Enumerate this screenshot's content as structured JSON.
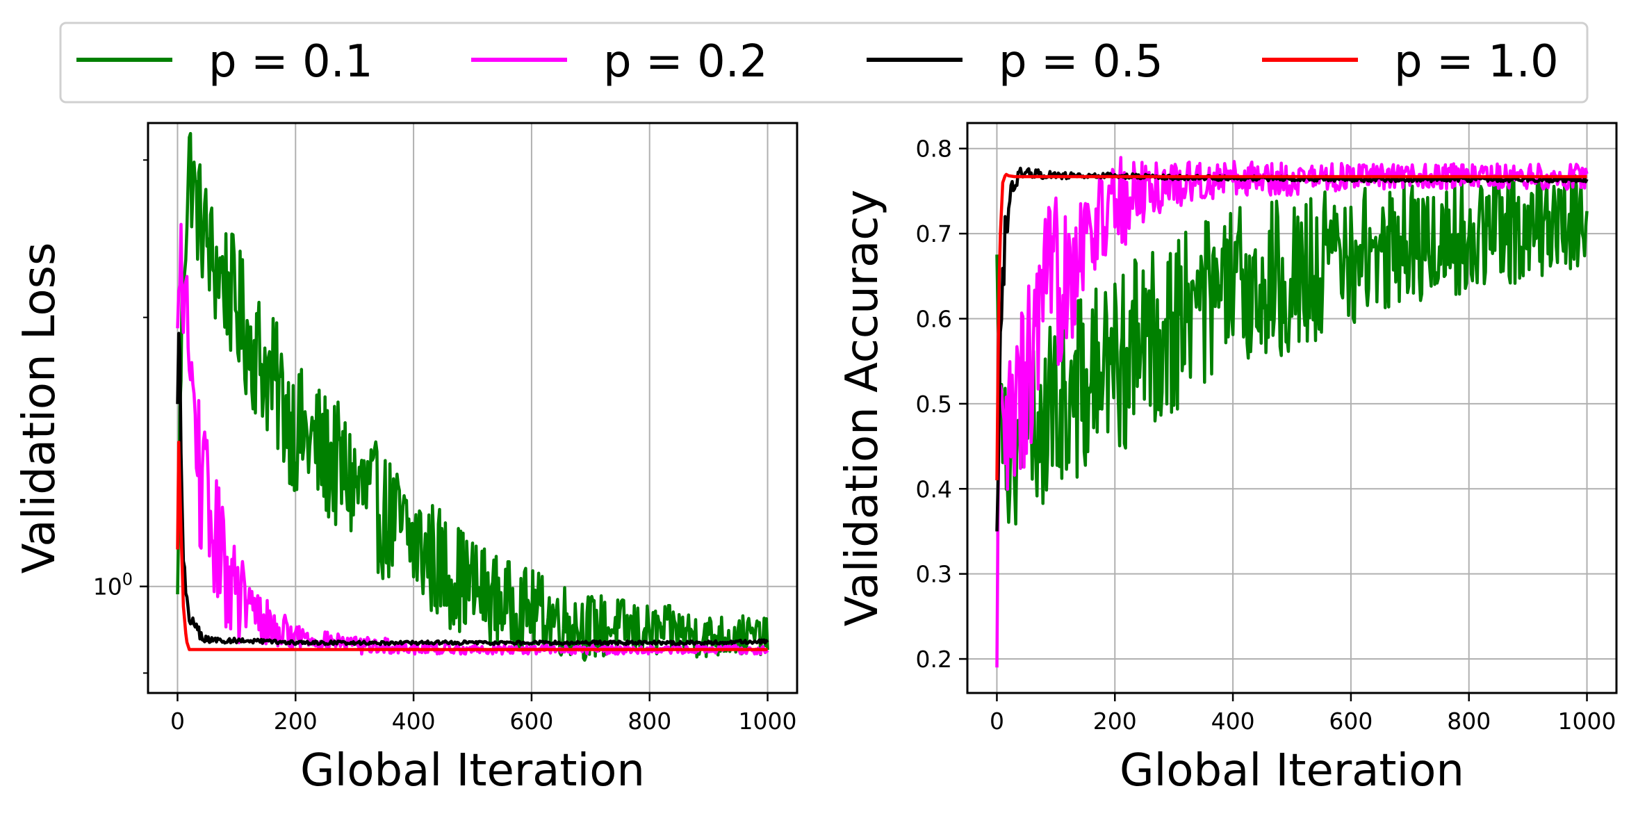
{
  "legend": {
    "entries": [
      {
        "label": "p = 0.1",
        "color": "#008000"
      },
      {
        "label": "p = 0.2",
        "color": "#ff00ff"
      },
      {
        "label": "p = 0.5",
        "color": "#000000"
      },
      {
        "label": "p = 1.0",
        "color": "#ff0000"
      }
    ],
    "placement": "top-center-outside"
  },
  "chart_data": [
    {
      "type": "line",
      "title": "",
      "xlabel": "Global Iteration",
      "ylabel": "Validation Loss",
      "yscale": "log",
      "xlim": [
        -50,
        1050
      ],
      "ylim": [
        0.76,
        3.3
      ],
      "xticks": [
        0,
        200,
        400,
        600,
        800,
        1000
      ],
      "xtick_labels": [
        "0",
        "200",
        "400",
        "600",
        "800",
        "1000"
      ],
      "yticks": [
        1.0
      ],
      "ytick_labels": [
        "10^0"
      ],
      "grid": true,
      "series": [
        {
          "name": "p = 0.1",
          "x": [
            0,
            10,
            20,
            30,
            45,
            60,
            80,
            100,
            120,
            150,
            180,
            200,
            250,
            300,
            350,
            400,
            450,
            500,
            550,
            600,
            650,
            700,
            750,
            800,
            850,
            900,
            950,
            1000
          ],
          "y": [
            0.98,
            2.3,
            3.0,
            2.7,
            2.5,
            2.3,
            2.2,
            2.05,
            1.9,
            1.75,
            1.6,
            1.5,
            1.4,
            1.3,
            1.2,
            1.12,
            1.05,
            1.0,
            0.96,
            0.94,
            0.92,
            0.9,
            0.9,
            0.89,
            0.89,
            0.88,
            0.88,
            0.88
          ],
          "spread": [
            0.0,
            0.4,
            0.45,
            0.4,
            0.4,
            0.38,
            0.36,
            0.35,
            0.33,
            0.3,
            0.28,
            0.26,
            0.24,
            0.22,
            0.2,
            0.18,
            0.16,
            0.13,
            0.11,
            0.1,
            0.09,
            0.08,
            0.07,
            0.06,
            0.06,
            0.05,
            0.05,
            0.04
          ]
        },
        {
          "name": "p = 0.2",
          "x": [
            0,
            5,
            10,
            20,
            30,
            40,
            60,
            80,
            100,
            130,
            160,
            200,
            250,
            300,
            400,
            500,
            600,
            700,
            800,
            900,
            1000
          ],
          "y": [
            1.9,
            2.3,
            2.2,
            1.8,
            1.5,
            1.3,
            1.15,
            1.05,
            0.98,
            0.93,
            0.9,
            0.88,
            0.87,
            0.86,
            0.855,
            0.85,
            0.85,
            0.85,
            0.85,
            0.85,
            0.85
          ],
          "spread": [
            0.1,
            0.25,
            0.3,
            0.3,
            0.28,
            0.25,
            0.2,
            0.16,
            0.12,
            0.08,
            0.05,
            0.03,
            0.02,
            0.02,
            0.015,
            0.01,
            0.01,
            0.01,
            0.01,
            0.01,
            0.01
          ]
        },
        {
          "name": "p = 0.5",
          "x": [
            0,
            3,
            6,
            10,
            15,
            20,
            30,
            40,
            50,
            60,
            80,
            100,
            200,
            300,
            400,
            500,
            600,
            700,
            800,
            900,
            1000
          ],
          "y": [
            1.6,
            2.1,
            1.4,
            1.05,
            0.98,
            0.93,
            0.9,
            0.88,
            0.87,
            0.87,
            0.87,
            0.87,
            0.865,
            0.865,
            0.865,
            0.865,
            0.865,
            0.865,
            0.865,
            0.865,
            0.868
          ],
          "spread": [
            0.0,
            0.05,
            0.05,
            0.04,
            0.03,
            0.02,
            0.015,
            0.012,
            0.01,
            0.008,
            0.006,
            0.005,
            0.004,
            0.004,
            0.004,
            0.004,
            0.004,
            0.004,
            0.004,
            0.004,
            0.004
          ]
        },
        {
          "name": "p = 1.0",
          "x": [
            0,
            2,
            5,
            10,
            15,
            20,
            30,
            40,
            60,
            100,
            200,
            400,
            600,
            800,
            1000
          ],
          "y": [
            1.1,
            1.45,
            1.2,
            0.95,
            0.87,
            0.85,
            0.85,
            0.85,
            0.85,
            0.85,
            0.85,
            0.85,
            0.85,
            0.85,
            0.85
          ],
          "spread": [
            0.0,
            0.0,
            0.0,
            0.0,
            0.0,
            0.0,
            0.0,
            0.0,
            0.0,
            0.0,
            0.0,
            0.0,
            0.0,
            0.0,
            0.0
          ]
        }
      ]
    },
    {
      "type": "line",
      "title": "",
      "xlabel": "Global Iteration",
      "ylabel": "Validation Accuracy",
      "yscale": "linear",
      "xlim": [
        -50,
        1050
      ],
      "ylim": [
        0.16,
        0.83
      ],
      "xticks": [
        0,
        200,
        400,
        600,
        800,
        1000
      ],
      "xtick_labels": [
        "0",
        "200",
        "400",
        "600",
        "800",
        "1000"
      ],
      "yticks": [
        0.2,
        0.3,
        0.4,
        0.5,
        0.6,
        0.7,
        0.8
      ],
      "ytick_labels": [
        "0.2",
        "0.3",
        "0.4",
        "0.5",
        "0.6",
        "0.7",
        "0.8"
      ],
      "grid": true,
      "series": [
        {
          "name": "p = 0.1",
          "x": [
            0,
            10,
            20,
            40,
            60,
            80,
            100,
            150,
            200,
            250,
            300,
            350,
            400,
            450,
            500,
            550,
            600,
            650,
            700,
            750,
            800,
            850,
            900,
            950,
            1000
          ],
          "y": [
            0.65,
            0.5,
            0.43,
            0.45,
            0.47,
            0.48,
            0.5,
            0.52,
            0.55,
            0.57,
            0.6,
            0.62,
            0.63,
            0.64,
            0.65,
            0.66,
            0.67,
            0.68,
            0.69,
            0.69,
            0.7,
            0.7,
            0.71,
            0.71,
            0.72
          ],
          "spread": [
            0.05,
            0.08,
            0.08,
            0.09,
            0.1,
            0.1,
            0.11,
            0.11,
            0.11,
            0.11,
            0.11,
            0.1,
            0.1,
            0.1,
            0.09,
            0.09,
            0.08,
            0.08,
            0.08,
            0.07,
            0.07,
            0.07,
            0.06,
            0.06,
            0.06
          ]
        },
        {
          "name": "p = 0.2",
          "x": [
            0,
            3,
            6,
            10,
            20,
            40,
            60,
            80,
            100,
            130,
            160,
            200,
            250,
            300,
            400,
            500,
            600,
            700,
            800,
            900,
            1000
          ],
          "y": [
            0.19,
            0.45,
            0.5,
            0.45,
            0.46,
            0.5,
            0.55,
            0.6,
            0.64,
            0.68,
            0.71,
            0.73,
            0.75,
            0.76,
            0.765,
            0.765,
            0.767,
            0.767,
            0.767,
            0.767,
            0.767
          ],
          "spread": [
            0.0,
            0.05,
            0.06,
            0.08,
            0.1,
            0.12,
            0.12,
            0.12,
            0.11,
            0.1,
            0.08,
            0.06,
            0.04,
            0.03,
            0.02,
            0.02,
            0.015,
            0.015,
            0.015,
            0.015,
            0.015
          ]
        },
        {
          "name": "p = 0.5",
          "x": [
            0,
            3,
            6,
            10,
            15,
            20,
            30,
            40,
            60,
            80,
            100,
            200,
            300,
            400,
            500,
            600,
            700,
            800,
            900,
            1000
          ],
          "y": [
            0.35,
            0.45,
            0.6,
            0.66,
            0.7,
            0.73,
            0.76,
            0.77,
            0.77,
            0.77,
            0.768,
            0.768,
            0.766,
            0.765,
            0.765,
            0.764,
            0.764,
            0.764,
            0.764,
            0.763
          ],
          "spread": [
            0.0,
            0.04,
            0.04,
            0.04,
            0.03,
            0.02,
            0.01,
            0.008,
            0.006,
            0.005,
            0.004,
            0.003,
            0.003,
            0.003,
            0.003,
            0.003,
            0.003,
            0.003,
            0.003,
            0.003
          ]
        },
        {
          "name": "p = 1.0",
          "x": [
            0,
            2,
            4,
            6,
            8,
            10,
            15,
            20,
            30,
            60,
            100,
            200,
            400,
            600,
            800,
            1000
          ],
          "y": [
            0.41,
            0.55,
            0.65,
            0.7,
            0.73,
            0.76,
            0.77,
            0.768,
            0.767,
            0.767,
            0.767,
            0.767,
            0.767,
            0.767,
            0.767,
            0.767
          ],
          "spread": [
            0.0,
            0.0,
            0.0,
            0.0,
            0.0,
            0.0,
            0.0,
            0.0,
            0.0,
            0.0,
            0.0,
            0.0,
            0.0,
            0.0,
            0.0,
            0.0
          ]
        }
      ]
    }
  ]
}
